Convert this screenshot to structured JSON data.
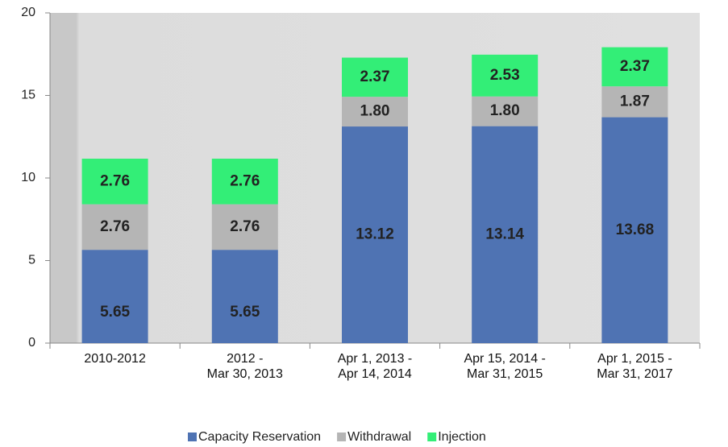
{
  "chart_data": {
    "type": "bar",
    "stacked": true,
    "categories": [
      "2010-2012",
      "2012 -\nMar 30, 2013",
      "Apr 1, 2013 -\nApr 14, 2014",
      "Apr 15, 2014 -\nMar 31, 2015",
      "Apr 1, 2015 -\nMar 31, 2017"
    ],
    "series": [
      {
        "name": "Capacity Reservation",
        "color": "#4f73b3",
        "label_color": "#ffffff",
        "values": [
          5.65,
          5.65,
          13.12,
          13.14,
          13.68
        ]
      },
      {
        "name": "Withdrawal",
        "color": "#b5b5b5",
        "label_color": "#0f2a5c",
        "values": [
          2.76,
          2.76,
          1.8,
          1.8,
          1.87
        ]
      },
      {
        "name": "Injection",
        "color": "#33ee77",
        "label_color": "#ffffff",
        "values": [
          2.76,
          2.76,
          2.37,
          2.53,
          2.37
        ]
      }
    ],
    "value_labels": [
      [
        "5.65",
        "5.65",
        "13.12",
        "13.14",
        "13.68"
      ],
      [
        "2.76",
        "2.76",
        "1.80",
        "1.80",
        "1.87"
      ],
      [
        "2.76",
        "2.76",
        "2.37",
        "2.53",
        "2.37"
      ]
    ],
    "ylim": [
      0,
      20
    ],
    "yticks": [
      0,
      5,
      10,
      15,
      20
    ],
    "legend": "bottom"
  }
}
